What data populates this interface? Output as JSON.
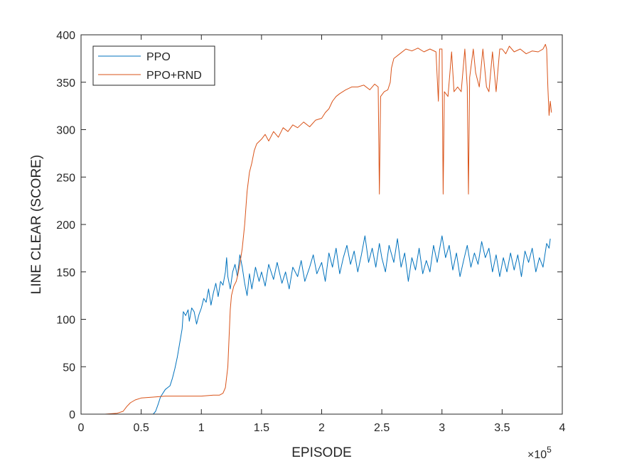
{
  "chart_data": {
    "type": "line",
    "xlabel": "EPISODE",
    "ylabel": "LINE CLEAR (SCORE)",
    "x_exponent_label": "×10",
    "x_exponent_power": "5",
    "xlim": [
      0,
      4
    ],
    "ylim": [
      0,
      400
    ],
    "x_ticks": [
      0,
      0.5,
      1,
      1.5,
      2,
      2.5,
      3,
      3.5,
      4
    ],
    "x_tick_labels": [
      "0",
      "0.5",
      "1",
      "1.5",
      "2",
      "2.5",
      "3",
      "3.5",
      "4"
    ],
    "y_ticks": [
      0,
      50,
      100,
      150,
      200,
      250,
      300,
      350,
      400
    ],
    "y_tick_labels": [
      "0",
      "50",
      "100",
      "150",
      "200",
      "250",
      "300",
      "350",
      "400"
    ],
    "grid": false,
    "legend_position": "top-left",
    "series": [
      {
        "name": "PPO",
        "color": "#0072BD",
        "points": [
          [
            0.08,
            0
          ],
          [
            0.3,
            0
          ],
          [
            0.6,
            0
          ],
          [
            0.62,
            3
          ],
          [
            0.64,
            10
          ],
          [
            0.66,
            18
          ],
          [
            0.68,
            22
          ],
          [
            0.7,
            26
          ],
          [
            0.72,
            28
          ],
          [
            0.74,
            30
          ],
          [
            0.76,
            38
          ],
          [
            0.78,
            48
          ],
          [
            0.8,
            60
          ],
          [
            0.82,
            75
          ],
          [
            0.84,
            90
          ],
          [
            0.85,
            108
          ],
          [
            0.87,
            104
          ],
          [
            0.89,
            110
          ],
          [
            0.9,
            98
          ],
          [
            0.92,
            112
          ],
          [
            0.94,
            108
          ],
          [
            0.96,
            95
          ],
          [
            0.98,
            105
          ],
          [
            1.0,
            112
          ],
          [
            1.02,
            122
          ],
          [
            1.04,
            118
          ],
          [
            1.06,
            132
          ],
          [
            1.08,
            115
          ],
          [
            1.1,
            128
          ],
          [
            1.12,
            138
          ],
          [
            1.14,
            124
          ],
          [
            1.16,
            140
          ],
          [
            1.18,
            136
          ],
          [
            1.2,
            150
          ],
          [
            1.21,
            165
          ],
          [
            1.22,
            145
          ],
          [
            1.24,
            132
          ],
          [
            1.26,
            150
          ],
          [
            1.28,
            158
          ],
          [
            1.3,
            145
          ],
          [
            1.32,
            168
          ],
          [
            1.34,
            155
          ],
          [
            1.36,
            138
          ],
          [
            1.38,
            125
          ],
          [
            1.4,
            148
          ],
          [
            1.42,
            132
          ],
          [
            1.45,
            155
          ],
          [
            1.48,
            140
          ],
          [
            1.5,
            150
          ],
          [
            1.53,
            135
          ],
          [
            1.56,
            158
          ],
          [
            1.6,
            142
          ],
          [
            1.63,
            160
          ],
          [
            1.67,
            138
          ],
          [
            1.7,
            150
          ],
          [
            1.73,
            132
          ],
          [
            1.76,
            155
          ],
          [
            1.8,
            145
          ],
          [
            1.83,
            162
          ],
          [
            1.86,
            140
          ],
          [
            1.9,
            155
          ],
          [
            1.93,
            168
          ],
          [
            1.96,
            148
          ],
          [
            2.0,
            160
          ],
          [
            2.03,
            140
          ],
          [
            2.06,
            170
          ],
          [
            2.09,
            155
          ],
          [
            2.12,
            175
          ],
          [
            2.15,
            148
          ],
          [
            2.18,
            165
          ],
          [
            2.21,
            178
          ],
          [
            2.24,
            158
          ],
          [
            2.27,
            172
          ],
          [
            2.3,
            150
          ],
          [
            2.33,
            168
          ],
          [
            2.36,
            188
          ],
          [
            2.39,
            160
          ],
          [
            2.42,
            175
          ],
          [
            2.45,
            155
          ],
          [
            2.48,
            180
          ],
          [
            2.5,
            165
          ],
          [
            2.53,
            150
          ],
          [
            2.56,
            178
          ],
          [
            2.6,
            160
          ],
          [
            2.63,
            185
          ],
          [
            2.66,
            155
          ],
          [
            2.69,
            170
          ],
          [
            2.72,
            140
          ],
          [
            2.75,
            165
          ],
          [
            2.78,
            152
          ],
          [
            2.81,
            175
          ],
          [
            2.84,
            148
          ],
          [
            2.87,
            162
          ],
          [
            2.9,
            150
          ],
          [
            2.93,
            178
          ],
          [
            2.96,
            160
          ],
          [
            3.0,
            188
          ],
          [
            3.03,
            165
          ],
          [
            3.06,
            178
          ],
          [
            3.09,
            152
          ],
          [
            3.12,
            170
          ],
          [
            3.15,
            145
          ],
          [
            3.18,
            162
          ],
          [
            3.21,
            178
          ],
          [
            3.24,
            155
          ],
          [
            3.27,
            170
          ],
          [
            3.3,
            158
          ],
          [
            3.33,
            182
          ],
          [
            3.36,
            165
          ],
          [
            3.39,
            175
          ],
          [
            3.42,
            150
          ],
          [
            3.45,
            168
          ],
          [
            3.48,
            145
          ],
          [
            3.51,
            165
          ],
          [
            3.54,
            150
          ],
          [
            3.57,
            170
          ],
          [
            3.6,
            152
          ],
          [
            3.63,
            168
          ],
          [
            3.66,
            145
          ],
          [
            3.69,
            172
          ],
          [
            3.72,
            160
          ],
          [
            3.75,
            175
          ],
          [
            3.78,
            150
          ],
          [
            3.81,
            165
          ],
          [
            3.84,
            155
          ],
          [
            3.87,
            180
          ],
          [
            3.89,
            175
          ],
          [
            3.9,
            185
          ]
        ]
      },
      {
        "name": "PPO+RND",
        "color": "#D95319",
        "points": [
          [
            0.08,
            0
          ],
          [
            0.2,
            0
          ],
          [
            0.3,
            1
          ],
          [
            0.35,
            3
          ],
          [
            0.38,
            8
          ],
          [
            0.41,
            12
          ],
          [
            0.45,
            15
          ],
          [
            0.5,
            17
          ],
          [
            0.6,
            18
          ],
          [
            0.7,
            19
          ],
          [
            0.8,
            19
          ],
          [
            0.9,
            19
          ],
          [
            1.0,
            19
          ],
          [
            1.1,
            20
          ],
          [
            1.15,
            20
          ],
          [
            1.18,
            22
          ],
          [
            1.2,
            28
          ],
          [
            1.22,
            50
          ],
          [
            1.23,
            80
          ],
          [
            1.24,
            110
          ],
          [
            1.25,
            125
          ],
          [
            1.27,
            135
          ],
          [
            1.29,
            140
          ],
          [
            1.3,
            145
          ],
          [
            1.32,
            158
          ],
          [
            1.34,
            175
          ],
          [
            1.36,
            200
          ],
          [
            1.38,
            235
          ],
          [
            1.4,
            255
          ],
          [
            1.42,
            265
          ],
          [
            1.44,
            278
          ],
          [
            1.46,
            285
          ],
          [
            1.5,
            290
          ],
          [
            1.53,
            295
          ],
          [
            1.56,
            288
          ],
          [
            1.6,
            298
          ],
          [
            1.64,
            292
          ],
          [
            1.68,
            302
          ],
          [
            1.72,
            298
          ],
          [
            1.76,
            305
          ],
          [
            1.8,
            302
          ],
          [
            1.85,
            308
          ],
          [
            1.9,
            303
          ],
          [
            1.95,
            310
          ],
          [
            2.0,
            312
          ],
          [
            2.03,
            318
          ],
          [
            2.06,
            322
          ],
          [
            2.09,
            330
          ],
          [
            2.12,
            335
          ],
          [
            2.15,
            338
          ],
          [
            2.2,
            342
          ],
          [
            2.25,
            345
          ],
          [
            2.3,
            345
          ],
          [
            2.35,
            347
          ],
          [
            2.4,
            342
          ],
          [
            2.44,
            348
          ],
          [
            2.47,
            345
          ],
          [
            2.48,
            232
          ],
          [
            2.49,
            335
          ],
          [
            2.52,
            340
          ],
          [
            2.55,
            342
          ],
          [
            2.57,
            350
          ],
          [
            2.58,
            365
          ],
          [
            2.6,
            375
          ],
          [
            2.65,
            380
          ],
          [
            2.7,
            385
          ],
          [
            2.75,
            383
          ],
          [
            2.8,
            386
          ],
          [
            2.85,
            382
          ],
          [
            2.9,
            385
          ],
          [
            2.95,
            382
          ],
          [
            2.97,
            330
          ],
          [
            2.98,
            385
          ],
          [
            3.0,
            385
          ],
          [
            3.01,
            232
          ],
          [
            3.02,
            340
          ],
          [
            3.05,
            335
          ],
          [
            3.08,
            382
          ],
          [
            3.1,
            340
          ],
          [
            3.13,
            345
          ],
          [
            3.16,
            340
          ],
          [
            3.19,
            385
          ],
          [
            3.21,
            345
          ],
          [
            3.22,
            232
          ],
          [
            3.23,
            355
          ],
          [
            3.26,
            385
          ],
          [
            3.28,
            360
          ],
          [
            3.31,
            345
          ],
          [
            3.34,
            385
          ],
          [
            3.37,
            345
          ],
          [
            3.39,
            340
          ],
          [
            3.42,
            382
          ],
          [
            3.45,
            340
          ],
          [
            3.48,
            385
          ],
          [
            3.5,
            385
          ],
          [
            3.53,
            380
          ],
          [
            3.56,
            388
          ],
          [
            3.6,
            382
          ],
          [
            3.65,
            385
          ],
          [
            3.7,
            380
          ],
          [
            3.75,
            383
          ],
          [
            3.8,
            382
          ],
          [
            3.84,
            385
          ],
          [
            3.86,
            390
          ],
          [
            3.87,
            385
          ],
          [
            3.88,
            345
          ],
          [
            3.89,
            315
          ],
          [
            3.9,
            330
          ],
          [
            3.91,
            318
          ]
        ]
      }
    ]
  }
}
